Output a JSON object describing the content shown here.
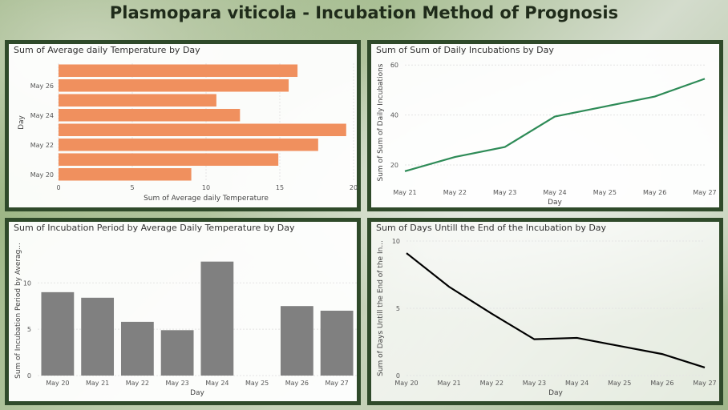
{
  "dashboard": {
    "title": "Plasmopara viticola - Incubation Method of Prognosis"
  },
  "chart_data": [
    {
      "type": "bar",
      "orientation": "horizontal",
      "title": "Sum of Average daily Temperature by Day",
      "xlabel": "Sum of Average daily Temperature",
      "ylabel": "Day",
      "categories": [
        "May 20",
        "May 21",
        "May 22",
        "May 23",
        "May 24",
        "May 25",
        "May 26",
        "May 27"
      ],
      "values": [
        9.0,
        14.9,
        17.6,
        19.5,
        12.3,
        10.7,
        15.6,
        16.2
      ],
      "color": "#f0905e",
      "xlim": [
        0,
        20
      ],
      "xticks": [
        0,
        5,
        10,
        15,
        20
      ],
      "yticks_shown": [
        "May 20",
        "May 22",
        "May 24",
        "May 26"
      ]
    },
    {
      "type": "line",
      "title": "Sum of Sum of Daily Incubations by Day",
      "xlabel": "Day",
      "ylabel": "Sum of Sum of Daily Incubations",
      "x": [
        "May 21",
        "May 22",
        "May 23",
        "May 24",
        "May 25",
        "May 26",
        "May 27"
      ],
      "values": [
        17.5,
        23.2,
        27.2,
        39.4,
        43.4,
        47.4,
        54.5
      ],
      "color": "#2e8b57",
      "ylim": [
        12,
        62
      ],
      "yticks": [
        20,
        40,
        60
      ]
    },
    {
      "type": "bar",
      "title": "Sum of Incubation Period by Average Daily Temperature by Day",
      "xlabel": "Day",
      "ylabel": "Sum of Incubation Period by Averag...",
      "categories": [
        "May 20",
        "May 21",
        "May 22",
        "May 23",
        "May 24",
        "May 25",
        "May 26",
        "May 27"
      ],
      "values": [
        9.0,
        8.4,
        5.8,
        4.9,
        12.3,
        0,
        7.5,
        7.0
      ],
      "color": "#808080",
      "ylim": [
        0,
        14
      ],
      "yticks": [
        0,
        5,
        10
      ]
    },
    {
      "type": "line",
      "title": "Sum of Days Untill the End of the Incubation by Day",
      "xlabel": "Day",
      "ylabel": "Sum of Days Untill the End of the In...",
      "x": [
        "May 20",
        "May 21",
        "May 22",
        "May 23",
        "May 24",
        "May 25",
        "May 26",
        "May 27"
      ],
      "values": [
        9.1,
        6.6,
        4.6,
        2.7,
        2.8,
        2.2,
        1.6,
        0.6
      ],
      "color": "#000000",
      "ylim": [
        0,
        10
      ],
      "yticks": [
        0,
        5,
        10
      ]
    }
  ]
}
